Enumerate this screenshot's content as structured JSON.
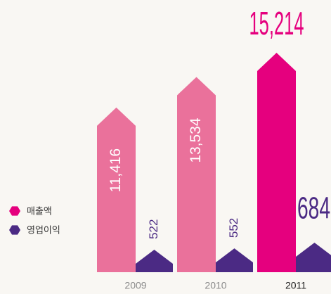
{
  "chart_data": {
    "type": "bar",
    "categories": [
      "2009",
      "2010",
      "2011"
    ],
    "series": [
      {
        "name": "매출액",
        "color": "#ea719b",
        "colors": [
          "#ea719b",
          "#ea719b",
          "#e5007e"
        ],
        "values": [
          11416,
          13534,
          15214
        ],
        "value_labels": [
          "11,416",
          "13,534",
          "15,214"
        ]
      },
      {
        "name": "영업이익",
        "color": "#4b2a84",
        "colors": [
          "#4b2a84",
          "#4b2a84",
          "#4b2a84"
        ],
        "values": [
          522,
          552,
          684
        ]
      }
    ]
  }
}
